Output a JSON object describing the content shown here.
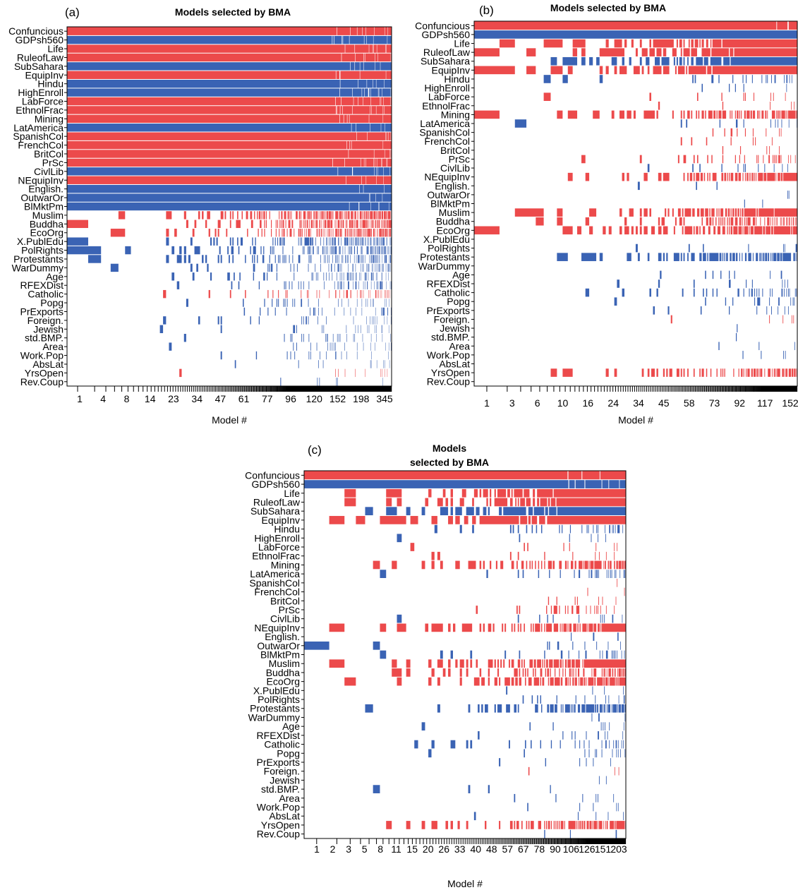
{
  "colors": {
    "positive": "#EC4A4B",
    "negative": "#3A63B4",
    "frame": "#000000"
  },
  "chart_data": [
    {
      "panel": "(a)",
      "type": "heatmap",
      "title": [
        "Models selected by BMA"
      ],
      "xlabel": "Model #",
      "x_tick_labels": [
        "1",
        "4",
        "8",
        "14",
        "23",
        "34",
        "47",
        "61",
        "77",
        "96",
        "120",
        "152",
        "198",
        "345"
      ],
      "variables": [
        "Confuncious",
        "GDPsh560",
        "Life",
        "RuleofLaw",
        "SubSahara",
        "EquipInv",
        "Hindu",
        "HighEnroll",
        "LabForce",
        "EthnolFrac",
        "Mining",
        "LatAmerica",
        "SpanishCol",
        "FrenchCol",
        "BritCol",
        "PrSc",
        "CivlLib",
        "NEquipInv",
        "English.",
        "OutwarOr",
        "BlMktPm",
        "Muslim",
        "Buddha",
        "EcoOrg",
        "X.PublEdu",
        "PolRights",
        "Protestants",
        "WarDummy",
        "Age",
        "RFEXDist",
        "Catholic",
        "Popg",
        "PrExports",
        "Foreign.",
        "Jewish",
        "std.BMP.",
        "Area",
        "Work.Pop",
        "AbsLat",
        "YrsOpen",
        "Rev.Coup"
      ],
      "inclusion": [
        1,
        1,
        1,
        1,
        1,
        1,
        1,
        1,
        1,
        1,
        1,
        1,
        1,
        1,
        1,
        1,
        1,
        1,
        1,
        1,
        1,
        0.5,
        0.45,
        0.4,
        0.3,
        0.25,
        0.25,
        0.15,
        0.15,
        0.13,
        0.12,
        0.1,
        0.08,
        0.07,
        0.06,
        0.05,
        0.04,
        0.04,
        0.03,
        0.03,
        0.02
      ],
      "sign": [
        1,
        -1,
        1,
        1,
        -1,
        1,
        -1,
        -1,
        1,
        1,
        1,
        -1,
        1,
        1,
        1,
        1,
        -1,
        1,
        -1,
        -1,
        -1,
        1,
        1,
        1,
        -1,
        -1,
        -1,
        -1,
        -1,
        -1,
        1,
        -1,
        -1,
        -1,
        -1,
        -1,
        -1,
        -1,
        -1,
        1,
        -1
      ],
      "xlim": [
        0,
        345
      ]
    },
    {
      "panel": "(b)",
      "type": "heatmap",
      "title": [
        "Models selected by BMA"
      ],
      "xlabel": "Model #",
      "x_tick_labels": [
        "1",
        "3",
        "6",
        "10",
        "16",
        "24",
        "34",
        "45",
        "58",
        "73",
        "92",
        "117",
        "152"
      ],
      "variables": [
        "Confuncious",
        "GDPsh560",
        "Life",
        "RuleofLaw",
        "SubSahara",
        "EquipInv",
        "Hindu",
        "HighEnroll",
        "LabForce",
        "EthnolFrac",
        "Mining",
        "LatAmerica",
        "SpanishCol",
        "FrenchCol",
        "BritCol",
        "PrSc",
        "CivlLib",
        "NEquipInv",
        "English.",
        "OutwarOr",
        "BlMktPm",
        "Muslim",
        "Buddha",
        "EcoOrg",
        "X.PublEdu",
        "PolRights",
        "Protestants",
        "WarDummy",
        "Age",
        "RFEXDist",
        "Catholic",
        "Popg",
        "PrExports",
        "Foreign.",
        "Jewish",
        "std.BMP.",
        "Area",
        "Work.Pop",
        "AbsLat",
        "YrsOpen",
        "Rev.Coup"
      ],
      "inclusion": [
        1,
        1,
        0.92,
        0.92,
        0.92,
        0.97,
        0.08,
        0.04,
        0.05,
        0.03,
        0.5,
        0.1,
        0.02,
        0.02,
        0.01,
        0.12,
        0.07,
        0.6,
        0.01,
        0.02,
        0.01,
        0.7,
        0.35,
        0.6,
        0.01,
        0.04,
        0.45,
        0.01,
        0.03,
        0.04,
        0.12,
        0.05,
        0.06,
        0.02,
        0.01,
        0.01,
        0.02,
        0.02,
        0.01,
        0.5,
        0.01
      ],
      "sign": [
        1,
        -1,
        1,
        1,
        -1,
        1,
        -1,
        -1,
        1,
        1,
        1,
        -1,
        1,
        1,
        1,
        1,
        -1,
        1,
        -1,
        -1,
        -1,
        1,
        1,
        1,
        -1,
        -1,
        -1,
        -1,
        -1,
        -1,
        -1,
        -1,
        -1,
        1,
        -1,
        -1,
        -1,
        -1,
        -1,
        1,
        -1
      ],
      "xlim": [
        0,
        152
      ]
    },
    {
      "panel": "(c)",
      "type": "heatmap",
      "title": [
        "Models",
        "selected by BMA"
      ],
      "xlabel": "Model #",
      "x_tick_labels": [
        "1",
        "2",
        "3",
        "5",
        "8",
        "11",
        "15",
        "20",
        "26",
        "33",
        "40",
        "48",
        "57",
        "67",
        "78",
        "90",
        "106",
        "126",
        "151",
        "203"
      ],
      "variables": [
        "Confuncious",
        "GDPsh560",
        "Life",
        "RuleofLaw",
        "SubSahara",
        "EquipInv",
        "Hindu",
        "HighEnroll",
        "LabForce",
        "EthnolFrac",
        "Mining",
        "LatAmerica",
        "SpanishCol",
        "FrenchCol",
        "BritCol",
        "PrSc",
        "CivlLib",
        "NEquipInv",
        "English.",
        "OutwarOr",
        "BlMktPm",
        "Muslim",
        "Buddha",
        "EcoOrg",
        "X.PublEdu",
        "PolRights",
        "Protestants",
        "WarDummy",
        "Age",
        "RFEXDist",
        "Catholic",
        "Popg",
        "PrExports",
        "Foreign.",
        "Jewish",
        "std.BMP.",
        "Area",
        "Work.Pop",
        "AbsLat",
        "YrsOpen",
        "Rev.Coup"
      ],
      "inclusion": [
        1,
        1,
        0.92,
        0.92,
        0.95,
        0.97,
        0.1,
        0.05,
        0.05,
        0.04,
        0.5,
        0.12,
        0.01,
        0.01,
        0.02,
        0.12,
        0.06,
        0.6,
        0.02,
        0.03,
        0.15,
        0.75,
        0.35,
        0.6,
        0.02,
        0.04,
        0.5,
        0.02,
        0.04,
        0.05,
        0.15,
        0.05,
        0.05,
        0.02,
        0.01,
        0.01,
        0.02,
        0.02,
        0.02,
        0.5,
        0.01
      ],
      "sign": [
        1,
        -1,
        1,
        1,
        -1,
        1,
        -1,
        -1,
        1,
        1,
        1,
        -1,
        1,
        1,
        1,
        1,
        -1,
        1,
        -1,
        -1,
        -1,
        1,
        1,
        1,
        -1,
        -1,
        -1,
        -1,
        -1,
        -1,
        -1,
        -1,
        -1,
        1,
        -1,
        -1,
        -1,
        -1,
        -1,
        1,
        -1
      ],
      "xlim": [
        0,
        203
      ]
    }
  ]
}
